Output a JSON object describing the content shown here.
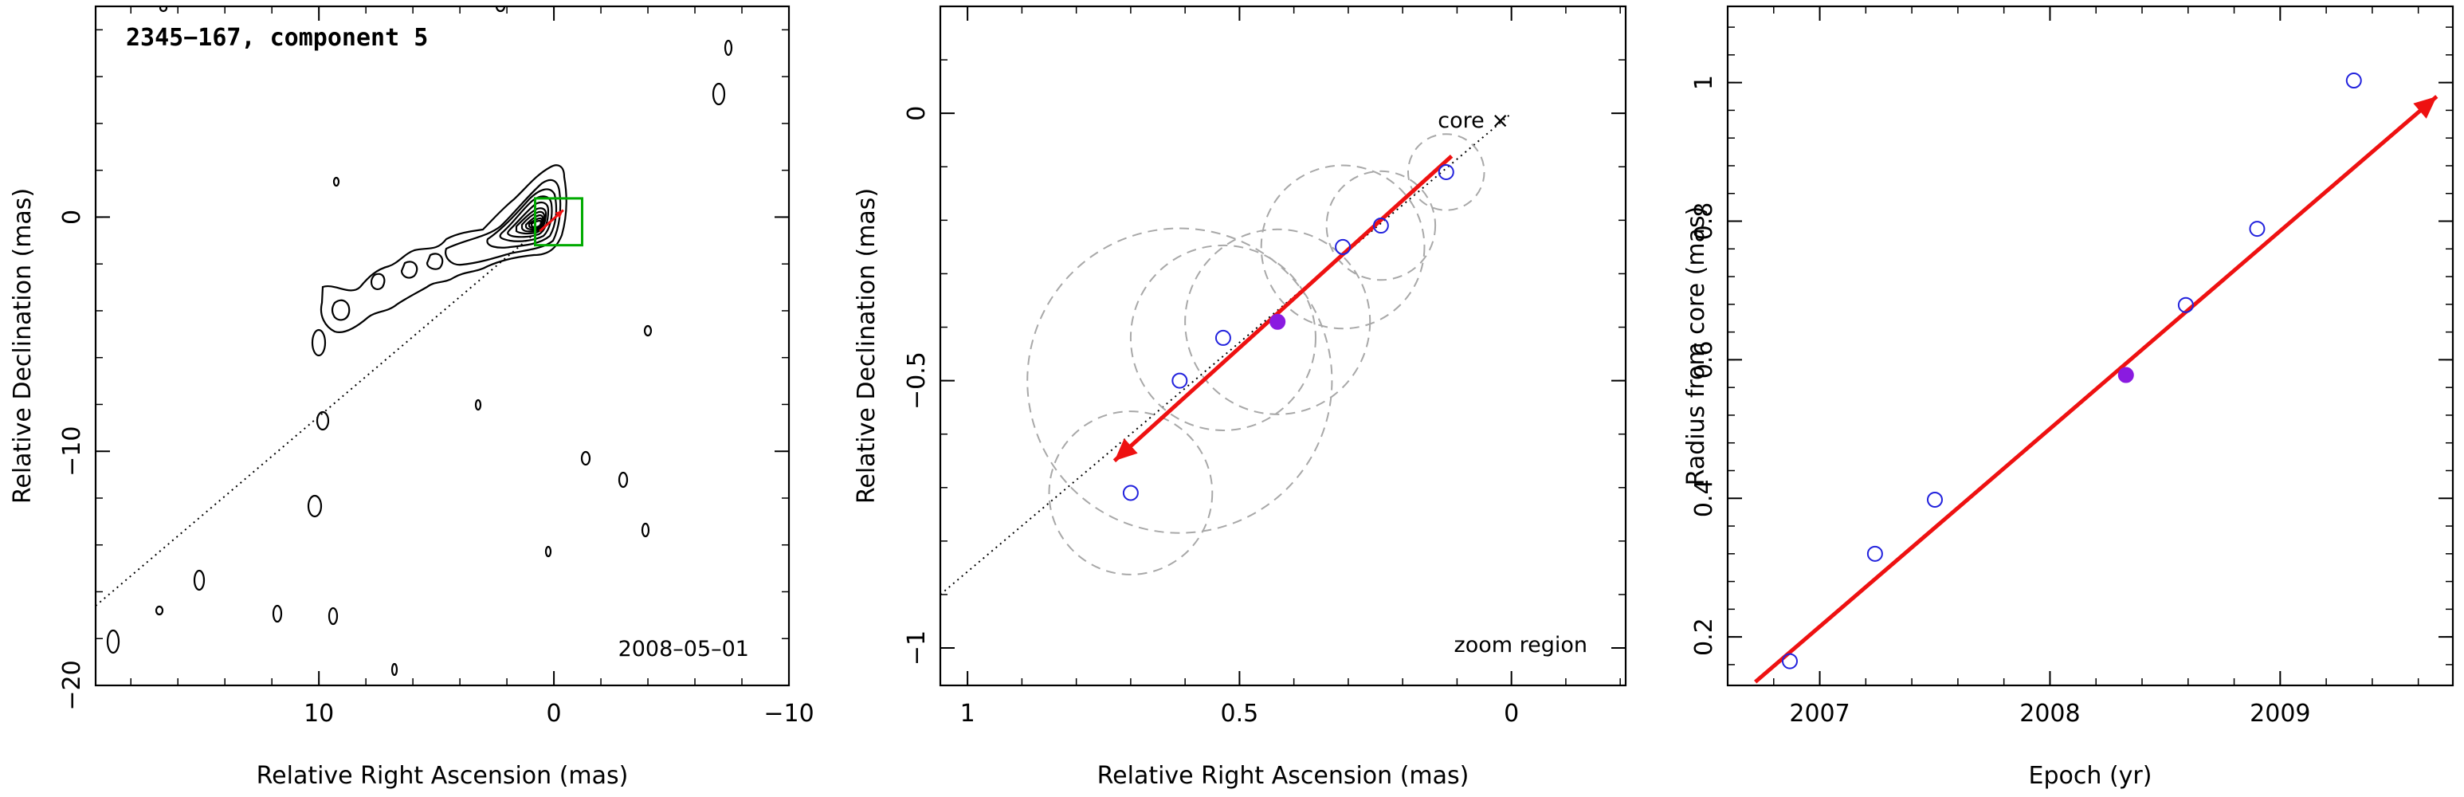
{
  "colors": {
    "trajectory_arrow": "#ee1111",
    "open_marker": "#2222dd",
    "filled_marker": "#8a1be0",
    "uncertainty_circle": "#a8a8a8",
    "core_box": "#00aa00",
    "contour": "#000000"
  },
  "chart_data": [
    {
      "type": "contour",
      "title": "2345−167, component 5",
      "epoch_label": "2008–05–01",
      "xlabel": "Relative Right Ascension (mas)",
      "ylabel": "Relative Declination (mas)",
      "xlim": [
        19.5,
        -10
      ],
      "ylim": [
        -20,
        9
      ],
      "xticks": [
        10,
        0,
        -10
      ],
      "xticklabels": [
        "10",
        "0",
        "−10"
      ],
      "yticks": [
        0,
        -10,
        -20
      ],
      "yticklabels": [
        "0",
        "−10",
        "−20"
      ],
      "jet_direction_line": {
        "from": [
          19.5,
          -16.6
        ],
        "to": [
          0,
          0
        ],
        "style": "dotted"
      },
      "core_box": {
        "x": [
          -1.2,
          0.8
        ],
        "y": [
          -1.2,
          0.8
        ]
      },
      "contour_levels": 14
    },
    {
      "type": "scatter",
      "annotations": [
        "core ×",
        "zoom region"
      ],
      "xlabel": "Relative Right Ascension (mas)",
      "ylabel": "Relative Declination (mas)",
      "xlim": [
        1.05,
        -0.21
      ],
      "ylim": [
        -1.07,
        0.2
      ],
      "xticks": [
        1,
        0.5,
        0
      ],
      "xticklabels": [
        "1",
        "0.5",
        "0"
      ],
      "yticks": [
        0,
        -0.5,
        -1
      ],
      "yticklabels": [
        "0",
        "−0.5",
        "−1"
      ],
      "points": [
        {
          "x": 0.12,
          "y": -0.11,
          "r": 0.07,
          "filled": false
        },
        {
          "x": 0.24,
          "y": -0.21,
          "r": 0.1,
          "filled": false
        },
        {
          "x": 0.31,
          "y": -0.25,
          "r": 0.15,
          "filled": false
        },
        {
          "x": 0.43,
          "y": -0.39,
          "r": 0.17,
          "filled": true
        },
        {
          "x": 0.53,
          "y": -0.42,
          "r": 0.17,
          "filled": false
        },
        {
          "x": 0.61,
          "y": -0.5,
          "r": 0.28,
          "filled": false
        },
        {
          "x": 0.7,
          "y": -0.71,
          "r": 0.15,
          "filled": false
        }
      ],
      "trajectory_arrow": {
        "from": [
          0.11,
          -0.08
        ],
        "to": [
          0.73,
          -0.65
        ]
      },
      "core": {
        "x": 0,
        "y": 0
      },
      "direction_line": {
        "from": [
          1.05,
          -0.9
        ],
        "to": [
          0,
          0
        ],
        "style": "dotted"
      }
    },
    {
      "type": "scatter",
      "xlabel": "Epoch (yr)",
      "ylabel": "Radius from core (mas)",
      "xlim": [
        2006.6,
        2009.75
      ],
      "ylim": [
        0.13,
        1.11
      ],
      "xticks": [
        2007,
        2008,
        2009
      ],
      "xticklabels": [
        "2007",
        "2008",
        "2009"
      ],
      "yticks": [
        0.2,
        0.4,
        0.6,
        0.8,
        1
      ],
      "yticklabels": [
        "0.2",
        "0.4",
        "0.6",
        "0.8",
        "1"
      ],
      "points": [
        {
          "x": 2006.87,
          "y": 0.165,
          "filled": false
        },
        {
          "x": 2007.24,
          "y": 0.32,
          "filled": false
        },
        {
          "x": 2007.5,
          "y": 0.398,
          "filled": false
        },
        {
          "x": 2008.33,
          "y": 0.578,
          "filled": true
        },
        {
          "x": 2008.59,
          "y": 0.679,
          "filled": false
        },
        {
          "x": 2008.9,
          "y": 0.789,
          "filled": false
        },
        {
          "x": 2009.32,
          "y": 1.003,
          "filled": false
        }
      ],
      "fit_arrow": {
        "from": [
          2006.72,
          0.135
        ],
        "to": [
          2009.68,
          0.98
        ]
      }
    }
  ]
}
